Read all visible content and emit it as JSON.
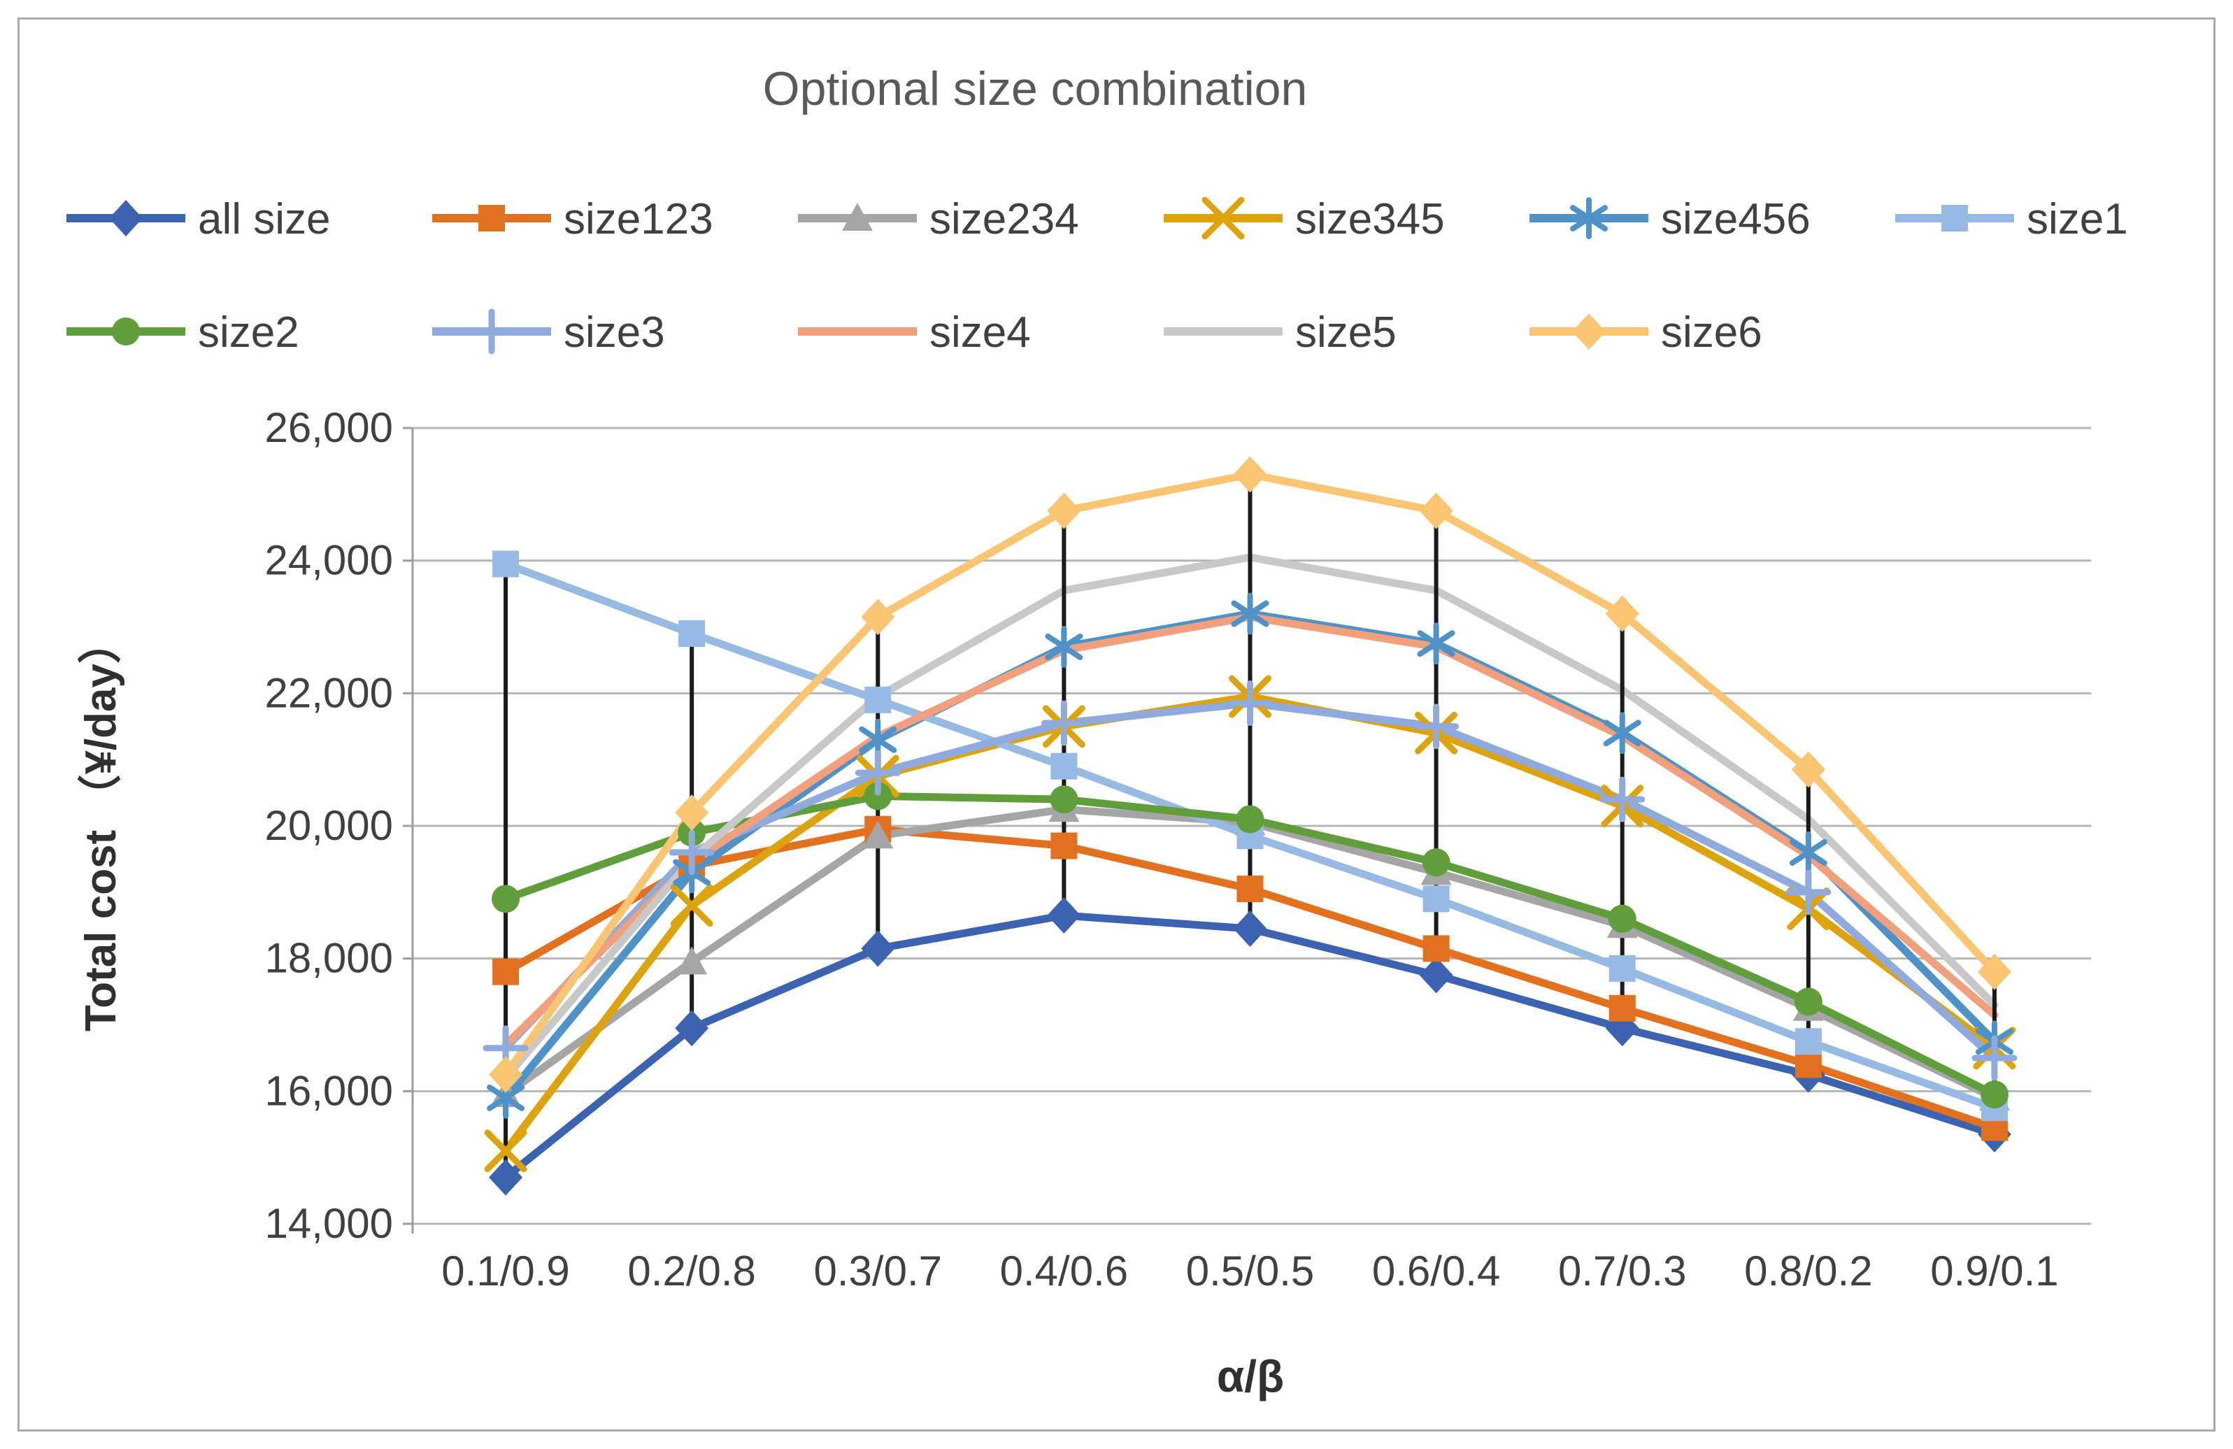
{
  "chart_data": {
    "type": "line",
    "title": "Optional size combination",
    "x_axis_title": "α/β",
    "y_axis_title": "Total cost （¥/day）",
    "categories": [
      "0.1/0.9",
      "0.2/0.8",
      "0.3/0.7",
      "0.4/0.6",
      "0.5/0.5",
      "0.6/0.4",
      "0.7/0.3",
      "0.8/0.2",
      "0.9/0.1"
    ],
    "ylim": [
      14000,
      26000
    ],
    "y_ticks": [
      14000,
      16000,
      18000,
      20000,
      22000,
      24000,
      26000
    ],
    "y_tick_labels": [
      "14,000",
      "16,000",
      "18,000",
      "20,000",
      "22,000",
      "24,000",
      "26,000"
    ],
    "grid": "horizontal-on",
    "legend_position": "top-two-rows",
    "high_low_lines": true,
    "colors": {
      "gridline": "#b5b5b5",
      "axis_line": "#9e9e9e",
      "high_low_line": "#1a1a1a",
      "title_text": "#595959",
      "tick_text": "#404040",
      "axis_title_text": "#303030"
    },
    "series": [
      {
        "name": "all size",
        "color": "#3c63b0",
        "marker": "diamond",
        "values": [
          14700,
          16950,
          18150,
          18650,
          18450,
          17750,
          16950,
          16250,
          15350
        ]
      },
      {
        "name": "size123",
        "color": "#e2711f",
        "marker": "square",
        "values": [
          17800,
          19400,
          19950,
          19700,
          19050,
          18150,
          17250,
          16400,
          15450
        ]
      },
      {
        "name": "size234",
        "color": "#a5a5a5",
        "marker": "triangle",
        "values": [
          15950,
          17950,
          19850,
          20250,
          20050,
          19300,
          18500,
          17250,
          15900
        ]
      },
      {
        "name": "size345",
        "color": "#dda30d",
        "marker": "x",
        "values": [
          15100,
          18800,
          20750,
          21500,
          21950,
          21400,
          20300,
          18750,
          16650
        ]
      },
      {
        "name": "size456",
        "color": "#4e92c8",
        "marker": "asterisk",
        "values": [
          15900,
          19300,
          21300,
          22700,
          23200,
          22750,
          21400,
          19600,
          16750
        ]
      },
      {
        "name": "size1",
        "color": "#96bae4",
        "marker": "square",
        "values": [
          23950,
          22900,
          21900,
          20900,
          19850,
          18900,
          17850,
          16750,
          15750
        ]
      },
      {
        "name": "size2",
        "color": "#5f9e3a",
        "marker": "circle",
        "values": [
          18900,
          19900,
          20450,
          20400,
          20100,
          19450,
          18600,
          17350,
          15950
        ]
      },
      {
        "name": "size3",
        "color": "#8faadc",
        "marker": "plus",
        "values": [
          16650,
          19600,
          20800,
          21550,
          21850,
          21500,
          20400,
          19000,
          16500
        ]
      },
      {
        "name": "size4",
        "color": "#f1a07e",
        "marker": "none",
        "values": [
          16700,
          19450,
          21350,
          22650,
          23150,
          22700,
          21350,
          19550,
          17150
        ]
      },
      {
        "name": "size5",
        "color": "#c8c8c8",
        "marker": "none",
        "values": [
          16200,
          19500,
          21950,
          23550,
          24050,
          23550,
          22050,
          20100,
          17300
        ]
      },
      {
        "name": "size6",
        "color": "#fac573",
        "marker": "diamond",
        "values": [
          16250,
          20200,
          23150,
          24750,
          25300,
          24750,
          23200,
          20850,
          17800
        ]
      }
    ],
    "legend_rows": [
      [
        "all size",
        "size123",
        "size234",
        "size345",
        "size456",
        "size1"
      ],
      [
        "size2",
        "size3",
        "size4",
        "size5",
        "size6"
      ]
    ]
  }
}
